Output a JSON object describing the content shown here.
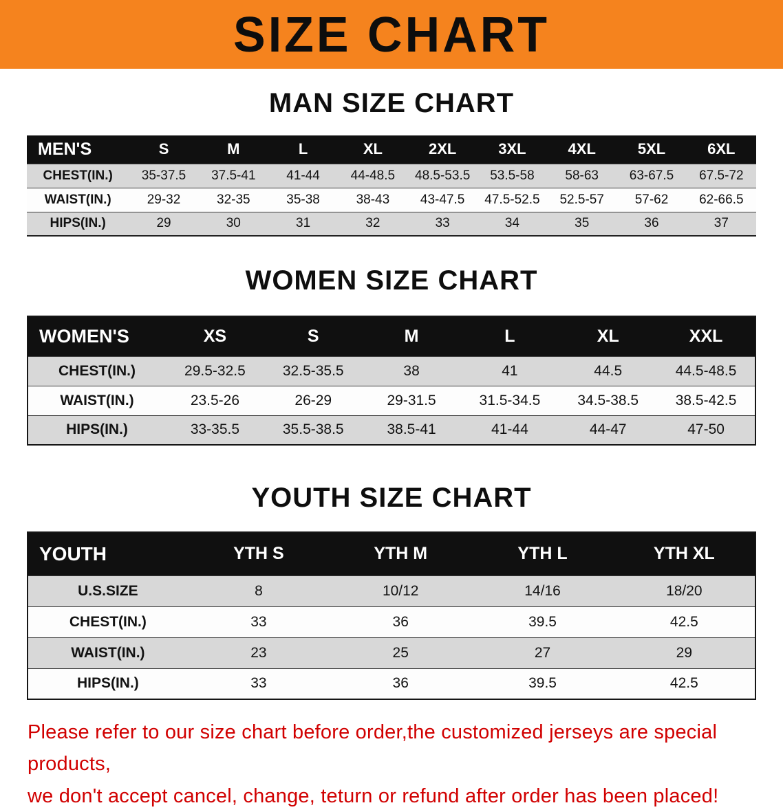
{
  "banner": {
    "title": "SIZE CHART",
    "bg_color": "#f5831e"
  },
  "tables": [
    {
      "heading": "MAN SIZE CHART",
      "header": [
        "MEN'S",
        "S",
        "M",
        "L",
        "XL",
        "2XL",
        "3XL",
        "4XL",
        "5XL",
        "6XL"
      ],
      "rows": [
        [
          "CHEST(IN.)",
          "35-37.5",
          "37.5-41",
          "41-44",
          "44-48.5",
          "48.5-53.5",
          "53.5-58",
          "58-63",
          "63-67.5",
          "67.5-72"
        ],
        [
          "WAIST(IN.)",
          "29-32",
          "32-35",
          "35-38",
          "38-43",
          "43-47.5",
          "47.5-52.5",
          "52.5-57",
          "57-62",
          "62-66.5"
        ],
        [
          "HIPS(IN.)",
          "29",
          "30",
          "31",
          "32",
          "33",
          "34",
          "35",
          "36",
          "37"
        ]
      ]
    },
    {
      "heading": "WOMEN SIZE CHART",
      "header": [
        "WOMEN'S",
        "XS",
        "S",
        "M",
        "L",
        "XL",
        "XXL"
      ],
      "rows": [
        [
          "CHEST(IN.)",
          "29.5-32.5",
          "32.5-35.5",
          "38",
          "41",
          "44.5",
          "44.5-48.5"
        ],
        [
          "WAIST(IN.)",
          "23.5-26",
          "26-29",
          "29-31.5",
          "31.5-34.5",
          "34.5-38.5",
          "38.5-42.5"
        ],
        [
          "HIPS(IN.)",
          "33-35.5",
          "35.5-38.5",
          "38.5-41",
          "41-44",
          "44-47",
          "47-50"
        ]
      ]
    },
    {
      "heading": "YOUTH SIZE CHART",
      "header": [
        "YOUTH",
        "YTH S",
        "YTH M",
        "YTH L",
        "YTH XL"
      ],
      "rows": [
        [
          "U.S.SIZE",
          "8",
          "10/12",
          "14/16",
          "18/20"
        ],
        [
          "CHEST(IN.)",
          "33",
          "36",
          "39.5",
          "42.5"
        ],
        [
          "WAIST(IN.)",
          "23",
          "25",
          "27",
          "29"
        ],
        [
          "HIPS(IN.)",
          "33",
          "36",
          "39.5",
          "42.5"
        ]
      ]
    }
  ],
  "footer": {
    "line1": "Please refer to our size chart before order,the customized jerseys are special products,",
    "line2": "we don't accept cancel, change, teturn or refund after order has been placed!"
  },
  "colors": {
    "banner_orange": "#f5831e",
    "header_black": "#101010",
    "row_gray": "#d8d8d8",
    "disclaimer_red": "#d10000"
  }
}
